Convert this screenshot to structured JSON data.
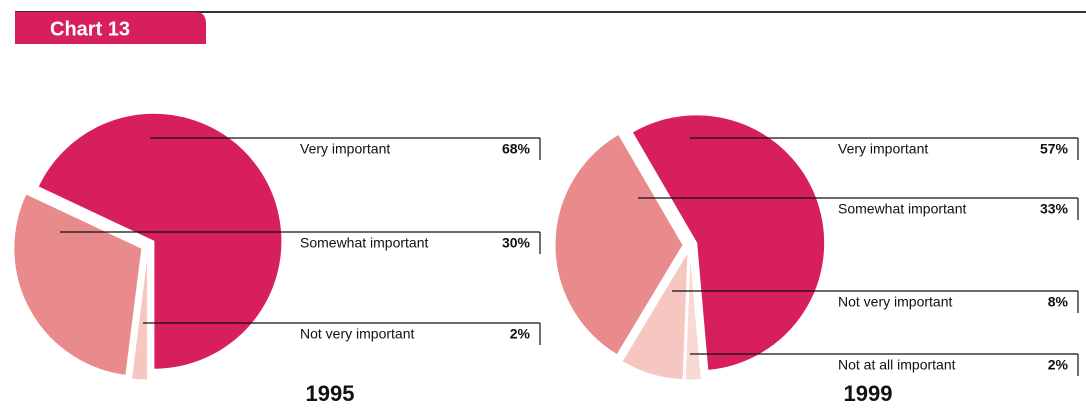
{
  "title": "Chart 13",
  "chart_data": [
    {
      "type": "pie",
      "title": "1995",
      "categories": [
        "Very important",
        "Somewhat important",
        "Not very important"
      ],
      "values": [
        68,
        30,
        2
      ],
      "value_labels": [
        "68%",
        "30%",
        "2%"
      ],
      "colors": [
        "#d61f5c",
        "#e98a8c",
        "#f6c6c0"
      ]
    },
    {
      "type": "pie",
      "title": "1999",
      "categories": [
        "Very important",
        "Somewhat important",
        "Not very important",
        "Not at all important"
      ],
      "values": [
        57,
        33,
        8,
        2
      ],
      "value_labels": [
        "57%",
        "33%",
        "8%",
        "2%"
      ],
      "colors": [
        "#d61f5c",
        "#e98a8c",
        "#f6c6c0",
        "#f9d9d3"
      ]
    }
  ]
}
